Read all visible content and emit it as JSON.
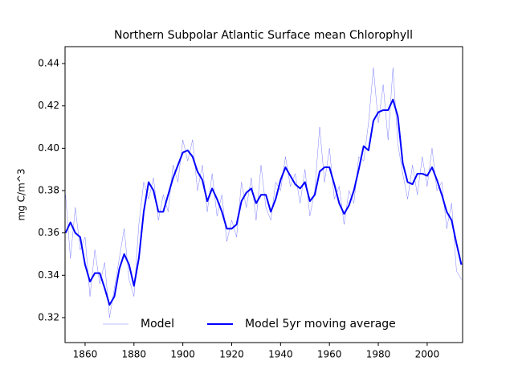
{
  "chart_data": {
    "type": "line",
    "title": "Northern Subpolar Atlantic Surface mean Chlorophyll",
    "y_label": "mg C/m^3",
    "x": [
      1852,
      1854,
      1856,
      1858,
      1860,
      1862,
      1864,
      1866,
      1868,
      1870,
      1872,
      1874,
      1876,
      1878,
      1880,
      1882,
      1884,
      1886,
      1888,
      1890,
      1892,
      1894,
      1896,
      1898,
      1900,
      1902,
      1904,
      1906,
      1908,
      1910,
      1912,
      1914,
      1916,
      1918,
      1920,
      1922,
      1924,
      1926,
      1928,
      1930,
      1932,
      1934,
      1936,
      1938,
      1940,
      1942,
      1944,
      1946,
      1948,
      1950,
      1952,
      1954,
      1956,
      1958,
      1960,
      1962,
      1964,
      1966,
      1968,
      1970,
      1972,
      1974,
      1976,
      1978,
      1980,
      1982,
      1984,
      1986,
      1988,
      1990,
      1992,
      1994,
      1996,
      1998,
      2000,
      2002,
      2004,
      2006,
      2008,
      2010,
      2012,
      2014
    ],
    "series": [
      {
        "name": "Model",
        "color": "#0000ff",
        "width": 0.5,
        "opacity": 0.5,
        "values": [
          0.378,
          0.348,
          0.372,
          0.352,
          0.358,
          0.33,
          0.352,
          0.336,
          0.346,
          0.32,
          0.334,
          0.348,
          0.362,
          0.338,
          0.33,
          0.364,
          0.384,
          0.376,
          0.386,
          0.366,
          0.378,
          0.37,
          0.392,
          0.384,
          0.404,
          0.394,
          0.404,
          0.38,
          0.392,
          0.37,
          0.388,
          0.368,
          0.378,
          0.356,
          0.366,
          0.358,
          0.384,
          0.372,
          0.386,
          0.366,
          0.392,
          0.372,
          0.366,
          0.384,
          0.38,
          0.396,
          0.382,
          0.388,
          0.374,
          0.39,
          0.368,
          0.38,
          0.41,
          0.384,
          0.4,
          0.376,
          0.382,
          0.364,
          0.38,
          0.374,
          0.396,
          0.394,
          0.412,
          0.438,
          0.412,
          0.43,
          0.404,
          0.438,
          0.402,
          0.388,
          0.376,
          0.392,
          0.378,
          0.396,
          0.382,
          0.4,
          0.38,
          0.384,
          0.362,
          0.374,
          0.342,
          0.338
        ]
      },
      {
        "name": "Model 5yr moving average",
        "color": "#0000ff",
        "width": 2,
        "opacity": 1,
        "values": [
          0.36,
          0.365,
          0.36,
          0.358,
          0.345,
          0.337,
          0.341,
          0.341,
          0.334,
          0.326,
          0.33,
          0.343,
          0.35,
          0.345,
          0.335,
          0.348,
          0.37,
          0.384,
          0.38,
          0.37,
          0.37,
          0.378,
          0.386,
          0.392,
          0.398,
          0.399,
          0.396,
          0.389,
          0.385,
          0.375,
          0.381,
          0.376,
          0.37,
          0.362,
          0.362,
          0.364,
          0.375,
          0.379,
          0.381,
          0.374,
          0.378,
          0.378,
          0.37,
          0.376,
          0.385,
          0.391,
          0.387,
          0.383,
          0.381,
          0.384,
          0.375,
          0.378,
          0.389,
          0.391,
          0.391,
          0.383,
          0.374,
          0.369,
          0.373,
          0.38,
          0.39,
          0.401,
          0.399,
          0.413,
          0.417,
          0.418,
          0.418,
          0.423,
          0.415,
          0.393,
          0.384,
          0.383,
          0.388,
          0.388,
          0.387,
          0.391,
          0.385,
          0.378,
          0.37,
          0.366,
          0.355,
          0.345
        ]
      }
    ],
    "xlim": [
      1851.8,
      2014.5
    ],
    "ylim": [
      0.3082,
      0.448
    ],
    "xticks": [
      1860,
      1880,
      1900,
      1920,
      1940,
      1960,
      1980,
      2000
    ],
    "yticks": [
      0.32,
      0.34,
      0.36,
      0.38,
      {
        "value": 0.4,
        "label": "0.40"
      },
      0.42,
      0.44
    ],
    "legend": "lower center"
  }
}
